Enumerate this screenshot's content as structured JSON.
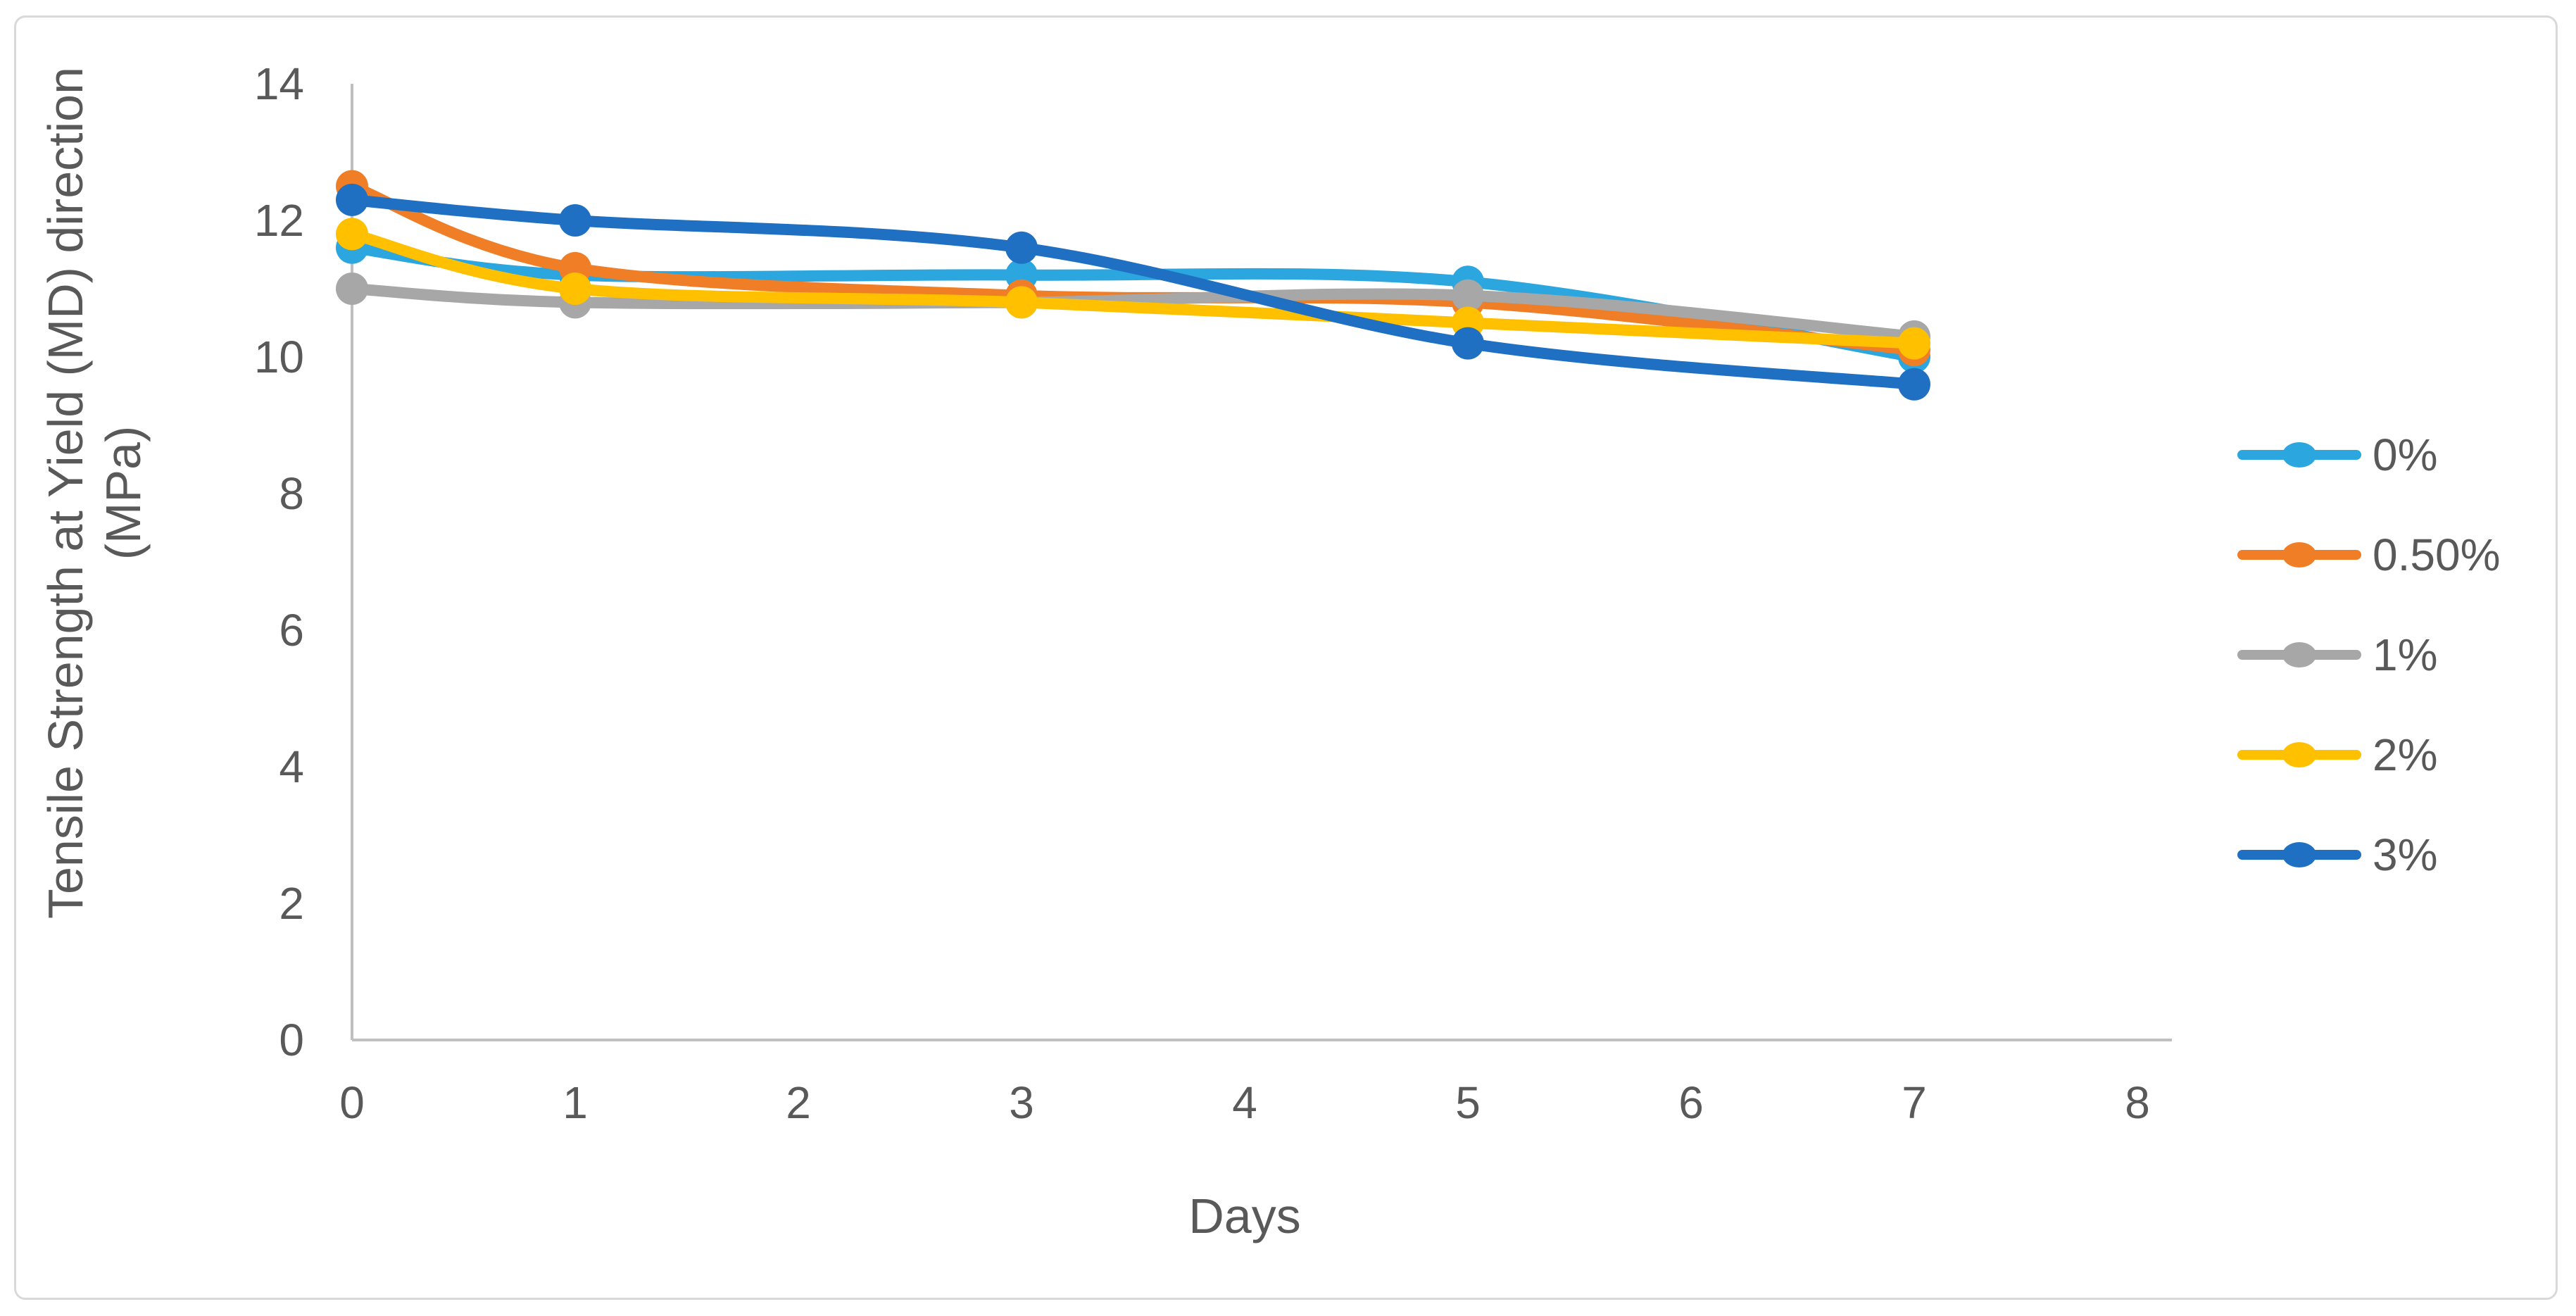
{
  "chart_data": {
    "type": "line",
    "title": "",
    "xlabel": "Days",
    "ylabel": "Tensile Strength at Yield (MD) direction (MPa)",
    "ylabel_line1": "Tensile Strength at Yield (MD) direction",
    "ylabel_line2": "(MPa)",
    "x": [
      0,
      1,
      3,
      5,
      7
    ],
    "series": [
      {
        "name": "0%",
        "color": "#2BA6DE",
        "values": [
          11.6,
          11.2,
          11.2,
          11.1,
          10.0
        ]
      },
      {
        "name": "0.50%",
        "color": "#F07E27",
        "values": [
          12.5,
          11.3,
          10.9,
          10.8,
          10.1
        ]
      },
      {
        "name": "1%",
        "color": "#A7A7A7",
        "values": [
          11.0,
          10.8,
          10.8,
          10.9,
          10.3
        ]
      },
      {
        "name": "2%",
        "color": "#FFC000",
        "values": [
          11.8,
          11.0,
          10.8,
          10.5,
          10.2
        ]
      },
      {
        "name": "3%",
        "color": "#1F6FC2",
        "values": [
          12.3,
          12.0,
          11.6,
          10.2,
          9.6
        ]
      }
    ],
    "x_ticks": [
      0,
      1,
      2,
      3,
      4,
      5,
      6,
      7,
      8
    ],
    "y_ticks": [
      0,
      2,
      4,
      6,
      8,
      10,
      12,
      14
    ],
    "xlim": [
      0,
      8
    ],
    "ylim": [
      0,
      14
    ],
    "grid": false,
    "smooth": true,
    "marker": "circle",
    "legend_position": "right"
  },
  "style": {
    "axis_color": "#BFBFBF",
    "text_color": "#595959",
    "border_color": "#D9D9D9",
    "background_color": "#FFFFFF"
  }
}
